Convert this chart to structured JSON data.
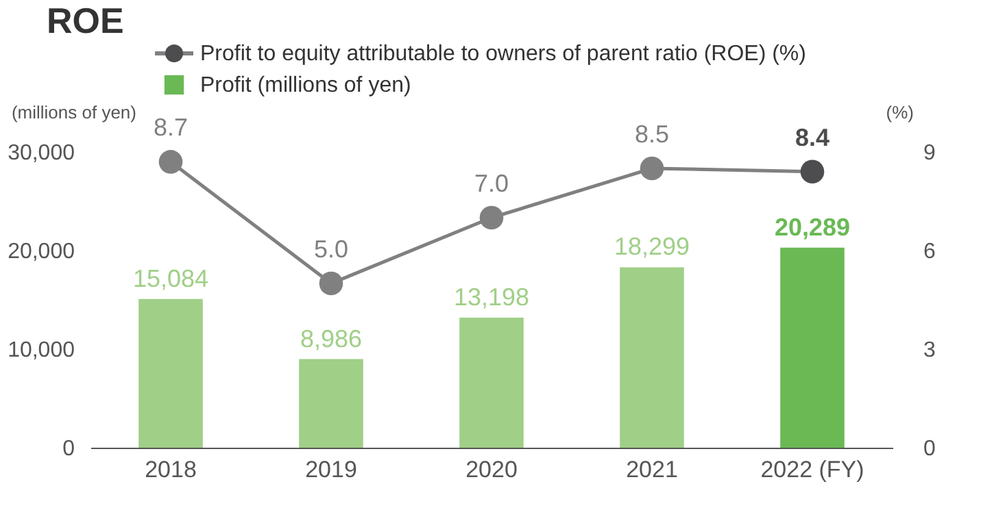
{
  "chart_data": {
    "type": "bar",
    "title": "ROE",
    "ylabel": "(millions of yen)",
    "y2label": "(%)",
    "categories": [
      "2018",
      "2019",
      "2020",
      "2021",
      "2022 (FY)"
    ],
    "series": [
      {
        "name": "Profit to equity attributable to owners of parent ratio (ROE) (%)",
        "type": "line",
        "axis": "y2",
        "color": "#808080",
        "colors": [
          "#808080",
          "#808080",
          "#808080",
          "#808080",
          "#4d4d4f"
        ],
        "values": [
          8.7,
          5.0,
          7.0,
          8.5,
          8.4
        ],
        "value_labels": [
          "8.7",
          "5.0",
          "7.0",
          "8.5",
          "8.4"
        ]
      },
      {
        "name": "Profit (millions of yen)",
        "color": "#6ab955",
        "colors": [
          "#a0cf88",
          "#a0cf88",
          "#a0cf88",
          "#a0cf88",
          "#6ab955"
        ],
        "values": [
          15084,
          8986,
          13198,
          18299,
          20289
        ],
        "value_labels": [
          "15,084",
          "8,986",
          "13,198",
          "18,299",
          "20,289"
        ]
      }
    ],
    "ylim": [
      0,
      30000
    ],
    "yticks": [
      0,
      {
        "value": 10000,
        "label": "10,000"
      },
      {
        "value": 20000,
        "label": "20,000"
      },
      {
        "value": 30000,
        "label": "30,000"
      }
    ],
    "y2lim": [
      0,
      9
    ],
    "y2ticks": [
      0,
      3,
      6,
      9
    ],
    "marker": "circle",
    "grid": false,
    "legend": "top"
  }
}
